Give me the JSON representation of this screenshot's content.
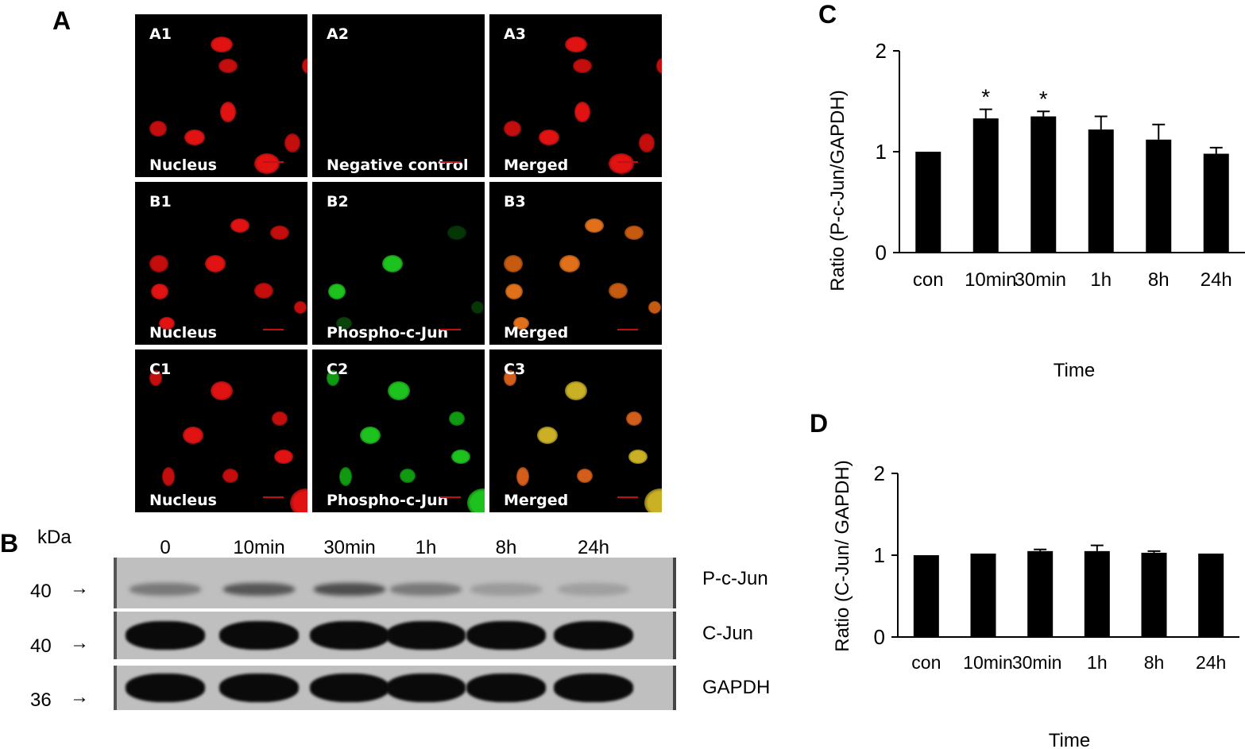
{
  "panel_letters": {
    "a": "A",
    "b": "B",
    "c": "C",
    "d": "D"
  },
  "microscopy": {
    "tiles": [
      {
        "code": "A1",
        "label": "Nucleus",
        "channel": "red"
      },
      {
        "code": "A2",
        "label": "Negative control",
        "channel": "none"
      },
      {
        "code": "A3",
        "label": "Merged",
        "channel": "red"
      },
      {
        "code": "B1",
        "label": "Nucleus",
        "channel": "red"
      },
      {
        "code": "B2",
        "label": "Phospho-c-Jun",
        "channel": "green"
      },
      {
        "code": "B3",
        "label": "Merged",
        "channel": "orange"
      },
      {
        "code": "C1",
        "label": "Nucleus",
        "channel": "red"
      },
      {
        "code": "C2",
        "label": "Phospho-c-Jun",
        "channel": "green"
      },
      {
        "code": "C3",
        "label": "Merged",
        "channel": "yellow"
      }
    ]
  },
  "western_blot": {
    "kda_label": "kDa",
    "lanes": [
      "0",
      "10min",
      "30min",
      "1h",
      "8h",
      "24h"
    ],
    "rows": [
      {
        "kda": "40",
        "name": "P-c-Jun",
        "intensity": [
          0.35,
          0.55,
          0.6,
          0.35,
          0.15,
          0.12
        ]
      },
      {
        "kda": "40",
        "name": "C-Jun",
        "intensity": [
          1,
          1,
          1,
          1,
          1,
          1
        ]
      },
      {
        "kda": "36",
        "name": "GAPDH",
        "intensity": [
          1,
          1,
          1,
          1,
          1,
          1
        ]
      }
    ]
  },
  "colors": {
    "bar": "#000000",
    "red_nucleus": "#e01010",
    "green_nucleus": "#20c020"
  },
  "chart_data": [
    {
      "type": "bar",
      "panel": "C",
      "categories": [
        "con",
        "10min",
        "30min",
        "1h",
        "8h",
        "24h"
      ],
      "values": [
        1.0,
        1.33,
        1.35,
        1.22,
        1.12,
        0.98
      ],
      "errors": [
        0.0,
        0.09,
        0.05,
        0.13,
        0.15,
        0.06
      ],
      "significance": [
        "",
        "*",
        "*",
        "",
        "",
        ""
      ],
      "xlabel": "Time",
      "ylabel": "Ratio (P-c-Jun/GAPDH)",
      "ylim": [
        0,
        2
      ],
      "yticks": [
        "0",
        "1",
        "2"
      ],
      "grid": false
    },
    {
      "type": "bar",
      "panel": "D",
      "categories": [
        "con",
        "10min",
        "30min",
        "1h",
        "8h",
        "24h"
      ],
      "values": [
        1.0,
        1.02,
        1.05,
        1.05,
        1.03,
        1.02
      ],
      "errors": [
        0.0,
        0.0,
        0.02,
        0.07,
        0.02,
        0.0
      ],
      "significance": [
        "",
        "",
        "",
        "",
        "",
        ""
      ],
      "xlabel": "Time",
      "ylabel": "Ratio (C-Jun/ GAPDH)",
      "ylim": [
        0,
        2
      ],
      "yticks": [
        "0",
        "1",
        "2"
      ],
      "grid": false
    }
  ]
}
